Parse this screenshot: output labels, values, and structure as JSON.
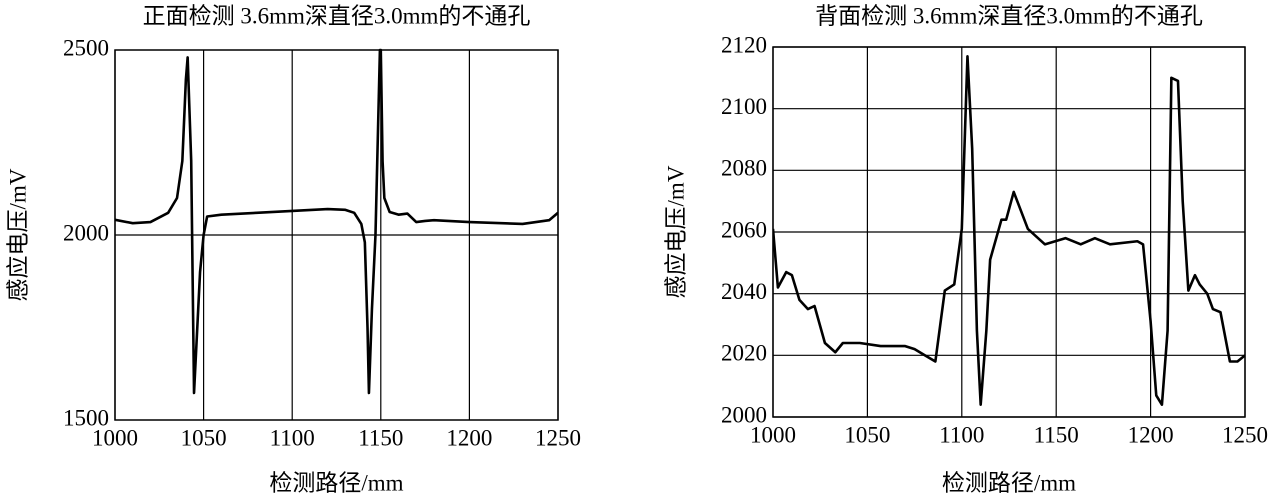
{
  "chart_data": [
    {
      "type": "line",
      "title": "正面检测 3.6mm深直径3.0mm的不通孔",
      "xlabel": "检测路径/mm",
      "ylabel": "感应电压/mV",
      "x": [
        1000,
        1010,
        1020,
        1030,
        1035,
        1038,
        1040,
        1041,
        1043,
        1044.6,
        1048,
        1050,
        1052,
        1060,
        1080,
        1100,
        1120,
        1130,
        1135,
        1139,
        1141,
        1142.5,
        1143.3,
        1145,
        1147,
        1148.5,
        1149.5,
        1150,
        1151,
        1152,
        1155,
        1160,
        1165,
        1170,
        1175,
        1180,
        1200,
        1230,
        1245,
        1250
      ],
      "series": [
        {
          "color": "#000000",
          "values": [
            2041,
            2032,
            2035,
            2060,
            2100,
            2200,
            2420,
            2480,
            2200,
            1573,
            1900,
            2000,
            2050,
            2055,
            2060,
            2065,
            2070,
            2068,
            2060,
            2030,
            1980,
            1750,
            1573,
            1800,
            2000,
            2300,
            2500,
            2500,
            2200,
            2100,
            2062,
            2055,
            2058,
            2035,
            2038,
            2040,
            2035,
            2030,
            2040,
            2060
          ]
        }
      ],
      "xlim": [
        1000,
        1250
      ],
      "ylim": [
        1500,
        2500
      ],
      "xticks": [
        1000,
        1050,
        1100,
        1150,
        1200,
        1250
      ],
      "yticks": [
        1500,
        2000,
        2500
      ],
      "grid": "x",
      "reference_line": 2000
    },
    {
      "type": "line",
      "title": "背面检测 3.6mm深直径3.0mm的不通孔",
      "xlabel": "检测路径/mm",
      "ylabel": "感应电压/mV",
      "x": [
        1000,
        1002.6,
        1007,
        1010,
        1014,
        1018.5,
        1022,
        1027.5,
        1033,
        1037,
        1041,
        1046,
        1057,
        1070,
        1075,
        1080.5,
        1086,
        1091,
        1096,
        1100,
        1103,
        1105.5,
        1108,
        1110,
        1113,
        1115,
        1121,
        1123.5,
        1127.5,
        1135,
        1144,
        1155,
        1163,
        1170.5,
        1178.5,
        1193,
        1196,
        1200,
        1203,
        1206,
        1209,
        1211,
        1214.5,
        1217,
        1220,
        1223.5,
        1226,
        1230,
        1233,
        1237,
        1242,
        1246,
        1250
      ],
      "series": [
        {
          "color": "#000000",
          "values": [
            2061,
            2042,
            2047,
            2046,
            2038,
            2035,
            2036,
            2024,
            2021,
            2024,
            2024,
            2024,
            2023,
            2023,
            2022,
            2020,
            2018,
            2041,
            2043,
            2061,
            2117,
            2087,
            2028,
            2004,
            2028,
            2051,
            2064,
            2064,
            2073,
            2061,
            2056,
            2058,
            2056,
            2058,
            2056,
            2057,
            2056,
            2031,
            2007,
            2004,
            2028,
            2110,
            2109,
            2070,
            2041,
            2046,
            2043,
            2040,
            2035,
            2034,
            2018,
            2018,
            2020
          ]
        }
      ],
      "xlim": [
        1000,
        1250
      ],
      "ylim": [
        2000,
        2120
      ],
      "xticks": [
        1000,
        1050,
        1100,
        1150,
        1200,
        1250
      ],
      "yticks": [
        2000,
        2020,
        2040,
        2060,
        2080,
        2100,
        2120
      ],
      "grid": true
    }
  ]
}
